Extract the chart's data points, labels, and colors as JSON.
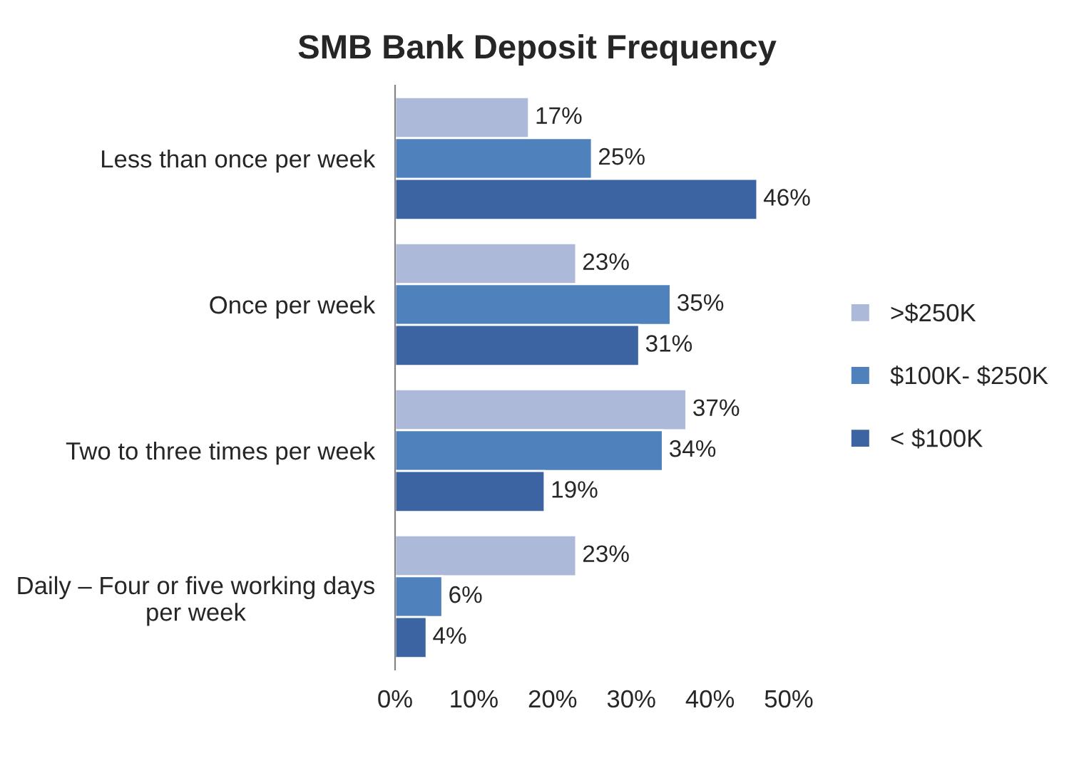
{
  "chart_data": {
    "type": "bar",
    "orientation": "horizontal",
    "title": "SMB Bank Deposit Frequency",
    "categories": [
      "Less than once per week",
      "Once per week",
      "Two to three times per week",
      "Daily – Four or five working days per week"
    ],
    "series": [
      {
        "name": ">$250K",
        "color": "#adb9d8",
        "values": [
          17,
          23,
          37,
          23
        ],
        "value_labels": [
          "17%",
          "23%",
          "37%",
          "23%"
        ]
      },
      {
        "name": "$100K- $250K",
        "color": "#4f81bd",
        "values": [
          25,
          35,
          34,
          6
        ],
        "value_labels": [
          "25%",
          "35%",
          "34%",
          "6%"
        ]
      },
      {
        "name": "< $100K",
        "color": "#3d64a2",
        "values": [
          46,
          31,
          19,
          4
        ],
        "value_labels": [
          "46%",
          "31%",
          "19%",
          "4%"
        ]
      }
    ],
    "xlim": [
      0,
      50
    ],
    "xticks": [
      {
        "value": 0,
        "label": "0%"
      },
      {
        "value": 10,
        "label": "10%"
      },
      {
        "value": 20,
        "label": "20%"
      },
      {
        "value": 30,
        "label": "30%"
      },
      {
        "value": 40,
        "label": "40%"
      },
      {
        "value": 50,
        "label": "50%"
      }
    ],
    "legend": "right",
    "grid": false
  }
}
